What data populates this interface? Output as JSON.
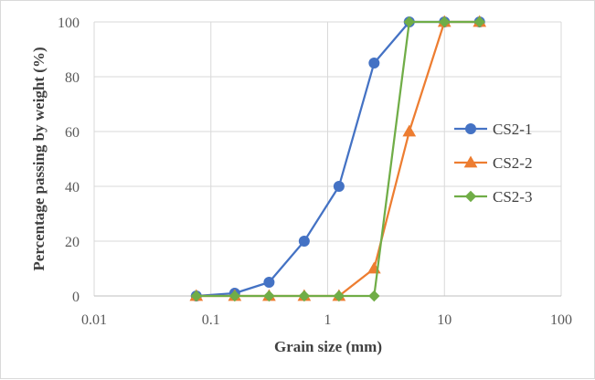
{
  "chart_data": {
    "type": "line",
    "title": "",
    "xlabel": "Grain size (mm)",
    "ylabel": "Percentage passing by weight (%)",
    "x_scale": "log",
    "xlim": [
      0.01,
      100
    ],
    "ylim": [
      0,
      100
    ],
    "x_ticks": [
      0.01,
      0.1,
      1,
      10,
      100
    ],
    "x_tick_labels": [
      "0.01",
      "0.1",
      "1",
      "10",
      "100"
    ],
    "y_ticks": [
      0,
      20,
      40,
      60,
      80,
      100
    ],
    "y_tick_labels": [
      "0",
      "20",
      "40",
      "60",
      "80",
      "100"
    ],
    "grid": true,
    "legend_position": "right",
    "series": [
      {
        "name": "CS2-1",
        "marker": "circle",
        "color": "#4472C4",
        "x": [
          0.075,
          0.16,
          0.315,
          0.63,
          1.25,
          2.5,
          5,
          10,
          20
        ],
        "y": [
          0,
          1,
          5,
          20,
          40,
          85,
          100,
          100,
          100
        ]
      },
      {
        "name": "CS2-2",
        "marker": "triangle",
        "color": "#ED7D31",
        "x": [
          0.075,
          0.16,
          0.315,
          0.63,
          1.25,
          2.5,
          5,
          10,
          20
        ],
        "y": [
          0,
          0,
          0,
          0,
          0,
          10,
          60,
          100,
          100
        ]
      },
      {
        "name": "CS2-3",
        "marker": "diamond",
        "color": "#70AD47",
        "x": [
          0.075,
          0.16,
          0.315,
          0.63,
          1.25,
          2.5,
          5,
          10,
          20
        ],
        "y": [
          0,
          0,
          0,
          0,
          0,
          0,
          100,
          100,
          100
        ]
      }
    ]
  }
}
